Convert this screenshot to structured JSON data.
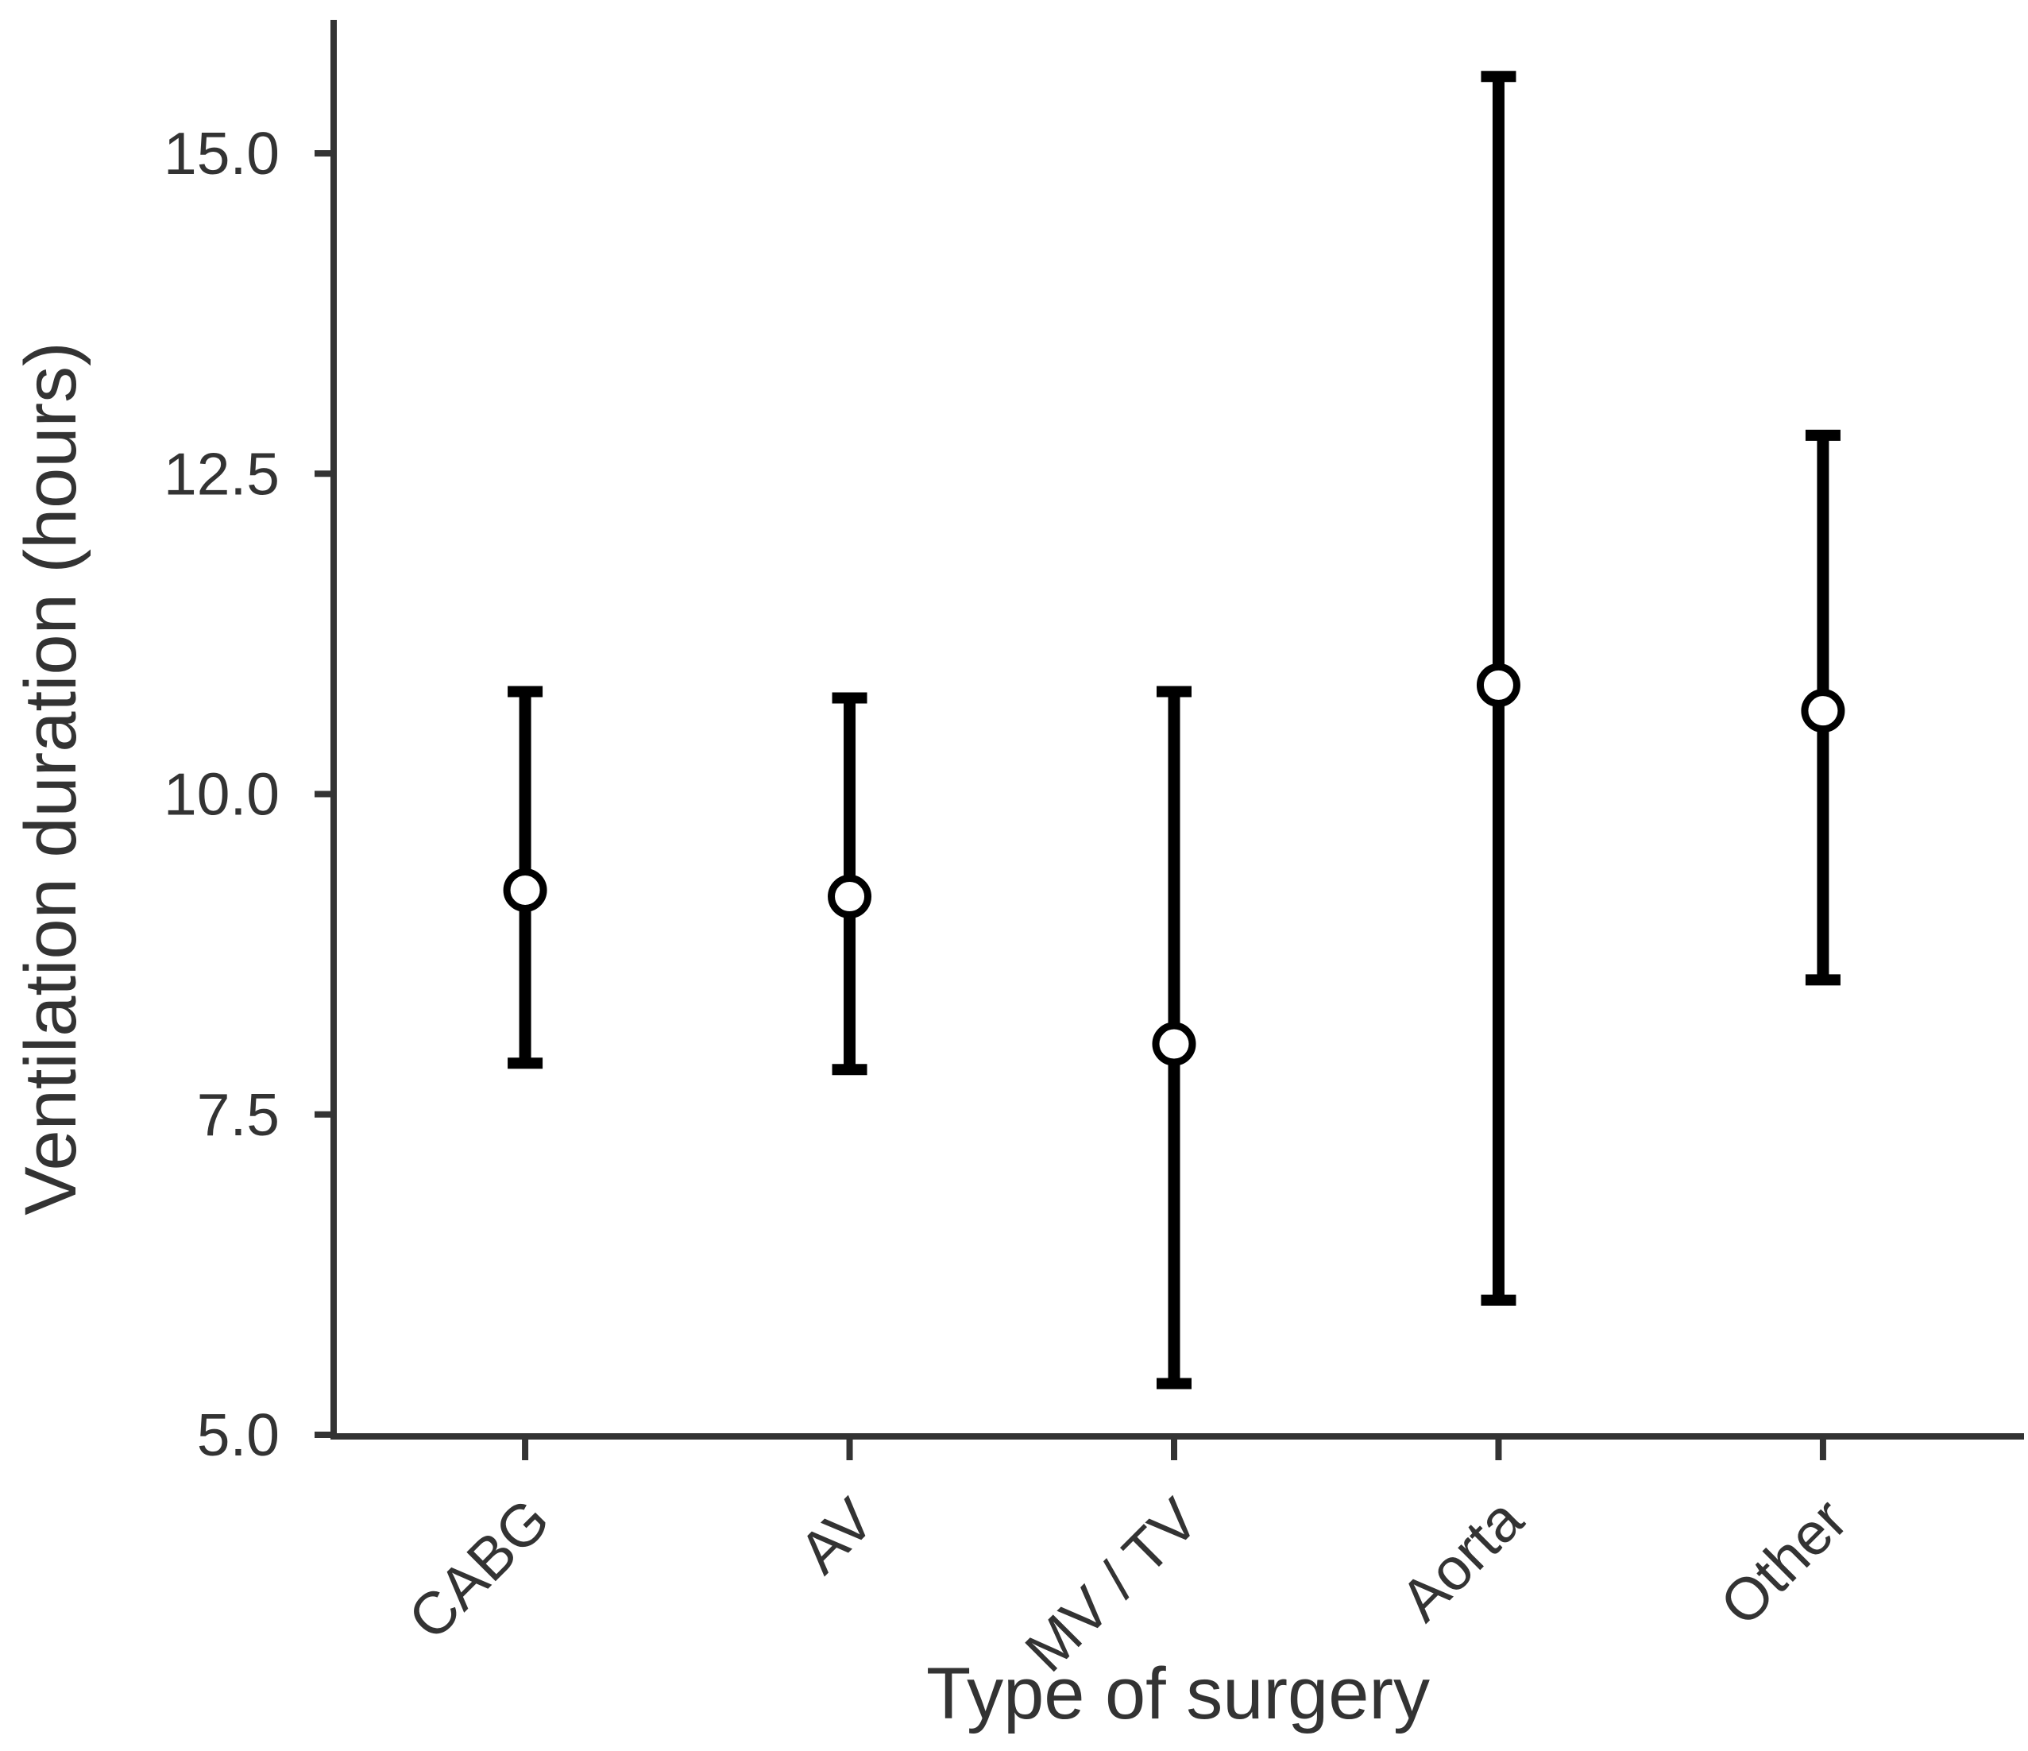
{
  "figure": {
    "background": "#ffffff"
  },
  "chart_data": {
    "type": "errorbar",
    "title": "",
    "xlabel": "Type of surgery",
    "ylabel": "Ventilation duration (hours)",
    "categories": [
      "CABG",
      "AV",
      "MV / TV",
      "Aorta",
      "Other"
    ],
    "points": [
      {
        "category": "CABG",
        "estimate": 9.25,
        "lower": 7.9,
        "upper": 10.8
      },
      {
        "category": "AV",
        "estimate": 9.2,
        "lower": 7.85,
        "upper": 10.75
      },
      {
        "category": "MV / TV",
        "estimate": 8.05,
        "lower": 5.4,
        "upper": 10.8
      },
      {
        "category": "Aorta",
        "estimate": 10.85,
        "lower": 6.05,
        "upper": 15.6
      },
      {
        "category": "Other",
        "estimate": 10.65,
        "lower": 8.55,
        "upper": 12.8
      }
    ],
    "y_ticks": [
      5.0,
      7.5,
      10.0,
      12.5,
      15.0
    ],
    "y_tick_labels": [
      "5.0",
      "7.5",
      "10.0",
      "12.5",
      "15.0"
    ],
    "ylim": [
      5.0,
      16.05
    ],
    "x_label_angle": 45,
    "grid": "off",
    "legend": "none",
    "marker": "open-circle",
    "colors": {
      "marks": "#000000",
      "marker_fill": "#ffffff",
      "axis": "#333333",
      "text": "#333333",
      "background": "#ffffff"
    }
  }
}
